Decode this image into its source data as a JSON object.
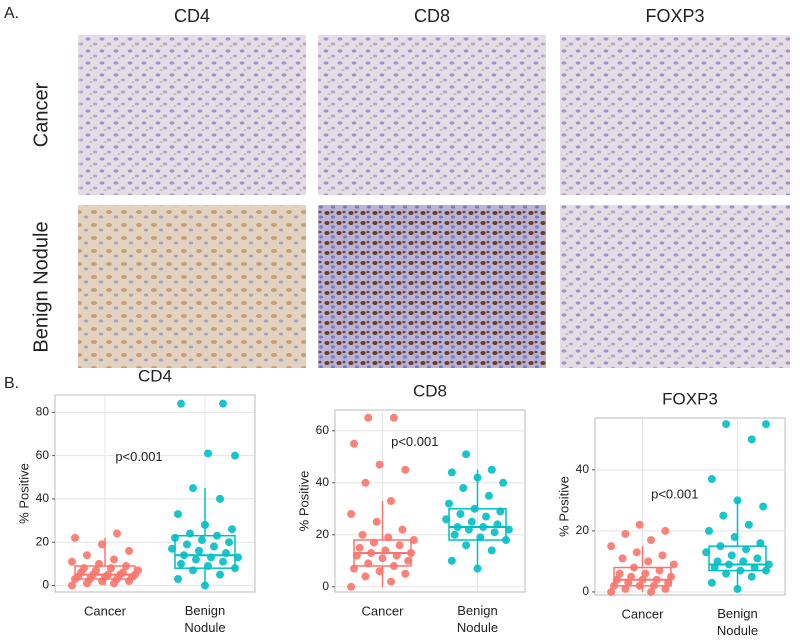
{
  "figure": {
    "panel_a_label": "A.",
    "panel_b_label": "B.",
    "columns": [
      "CD4",
      "CD8",
      "FOXP3"
    ],
    "rows": [
      "Cancer",
      "Benign Nodule"
    ]
  },
  "chart_data": [
    {
      "type": "box",
      "title": "CD4",
      "ylabel": "% Positive",
      "annotation": "p<0.001",
      "ylim": [
        -3,
        88
      ],
      "yticks": [
        0,
        20,
        40,
        60,
        80
      ],
      "grid": true,
      "series": [
        {
          "name": "Cancer",
          "color": "#f8766d",
          "box": {
            "min": 0,
            "q1": 3,
            "median": 5,
            "q3": 9,
            "max": 22
          },
          "points": [
            0,
            1,
            1,
            2,
            2,
            3,
            3,
            3,
            4,
            4,
            4,
            5,
            5,
            5,
            5,
            6,
            6,
            7,
            7,
            8,
            8,
            9,
            10,
            11,
            12,
            14,
            16,
            19,
            22,
            24
          ]
        },
        {
          "name": "Benign Nodule",
          "color": "#00bfc4",
          "box": {
            "min": 0,
            "q1": 8,
            "median": 14,
            "q3": 23,
            "max": 45
          },
          "points": [
            0,
            3,
            5,
            7,
            8,
            9,
            10,
            11,
            12,
            13,
            13,
            14,
            15,
            16,
            17,
            18,
            19,
            20,
            21,
            22,
            23,
            24,
            26,
            28,
            33,
            40,
            45,
            60,
            61,
            84,
            84
          ]
        }
      ]
    },
    {
      "type": "box",
      "title": "CD8",
      "ylabel": "% Positive",
      "annotation": "p<0.001",
      "ylim": [
        -2,
        68
      ],
      "yticks": [
        0,
        20,
        40,
        60
      ],
      "grid": true,
      "series": [
        {
          "name": "Cancer",
          "color": "#f8766d",
          "box": {
            "min": 0,
            "q1": 8,
            "median": 13,
            "q3": 18,
            "max": 33
          },
          "points": [
            0,
            2,
            4,
            5,
            6,
            7,
            8,
            9,
            10,
            11,
            12,
            12,
            13,
            13,
            14,
            15,
            16,
            17,
            18,
            19,
            20,
            22,
            25,
            28,
            33,
            40,
            45,
            47,
            55,
            65,
            65
          ]
        },
        {
          "name": "Benign Nodule",
          "color": "#00bfc4",
          "box": {
            "min": 7,
            "q1": 18,
            "median": 23,
            "q3": 30,
            "max": 45
          },
          "points": [
            7,
            10,
            14,
            16,
            18,
            19,
            20,
            21,
            22,
            22,
            23,
            23,
            24,
            25,
            26,
            27,
            28,
            29,
            30,
            32,
            35,
            38,
            40,
            42,
            44,
            45,
            51
          ]
        }
      ]
    },
    {
      "type": "box",
      "title": "FOXP3",
      "ylabel": "% Positive",
      "annotation": "p<0.001",
      "ylim": [
        -1,
        57
      ],
      "yticks": [
        0,
        20,
        40
      ],
      "grid": true,
      "series": [
        {
          "name": "Cancer",
          "color": "#f8766d",
          "box": {
            "min": 0,
            "q1": 2,
            "median": 4,
            "q3": 8,
            "max": 15
          },
          "points": [
            0,
            0,
            1,
            1,
            2,
            2,
            2,
            3,
            3,
            4,
            4,
            4,
            5,
            5,
            6,
            6,
            7,
            8,
            9,
            10,
            11,
            12,
            13,
            15,
            17,
            19,
            20,
            22
          ]
        },
        {
          "name": "Benign Nodule",
          "color": "#00bfc4",
          "box": {
            "min": 1,
            "q1": 7,
            "median": 9,
            "q3": 15,
            "max": 30
          },
          "points": [
            1,
            3,
            5,
            6,
            7,
            7,
            8,
            8,
            9,
            9,
            10,
            10,
            11,
            12,
            13,
            14,
            15,
            16,
            18,
            20,
            22,
            25,
            28,
            30,
            37,
            50,
            55,
            55
          ]
        }
      ]
    }
  ]
}
